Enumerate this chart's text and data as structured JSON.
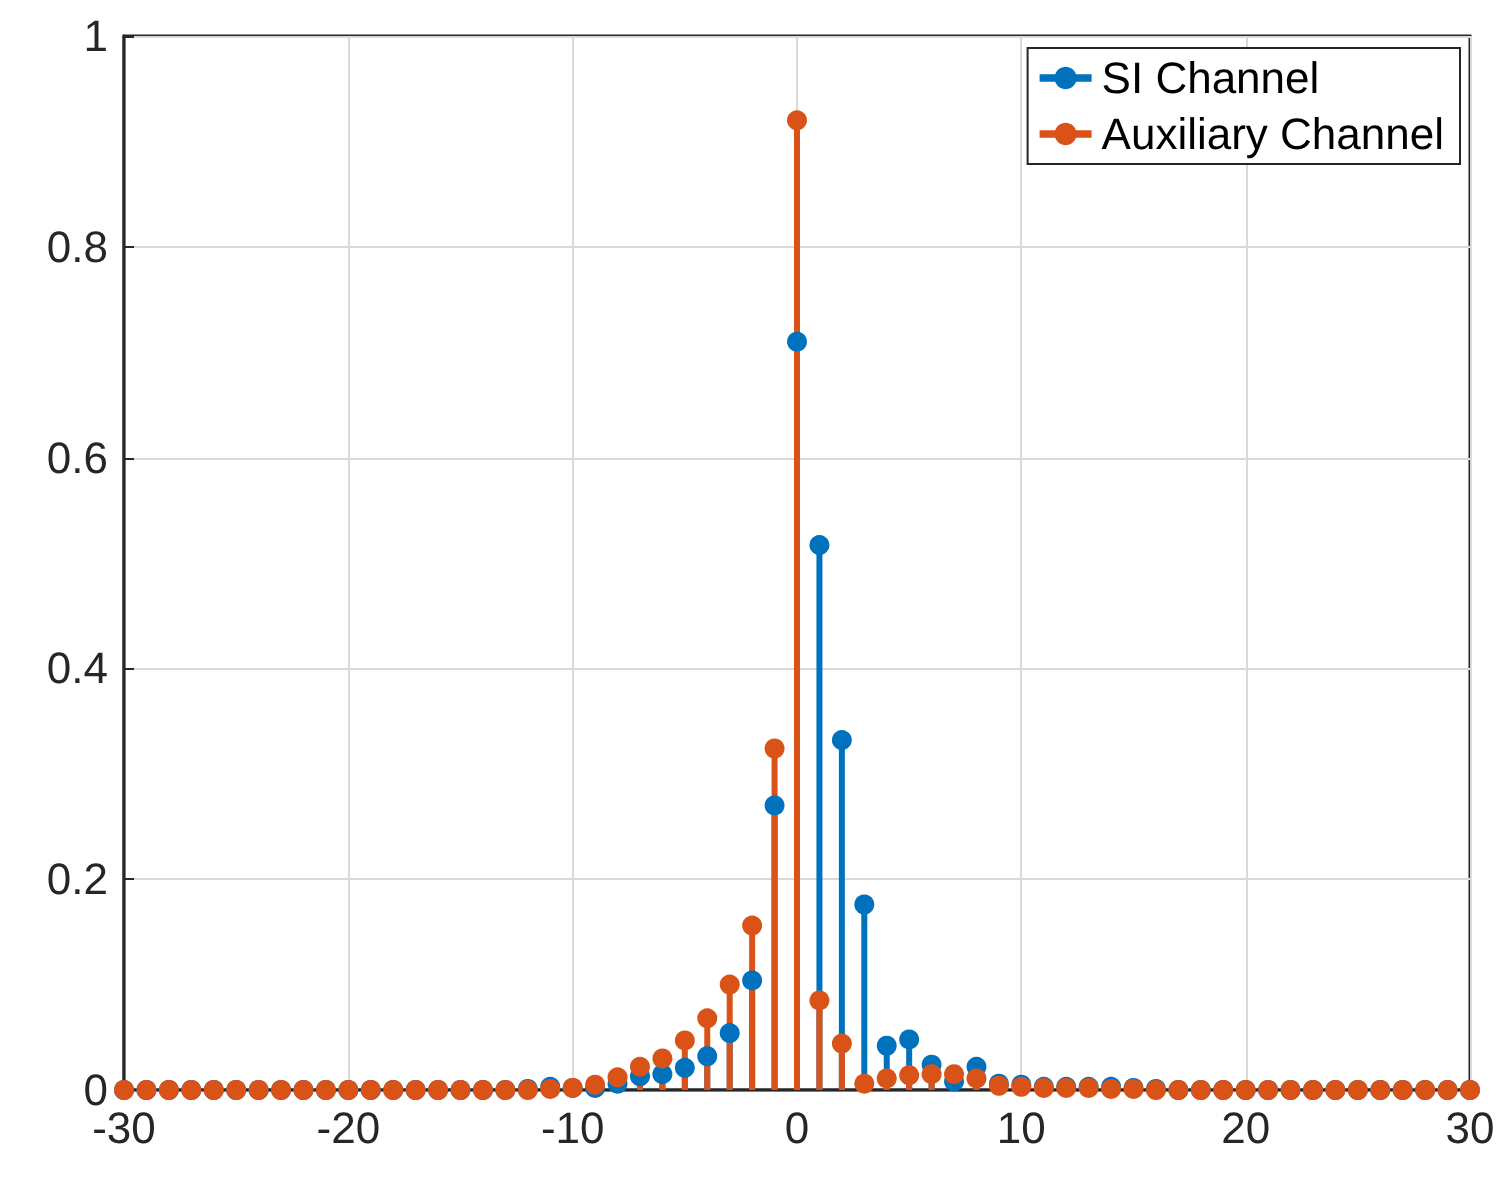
{
  "chart_data": {
    "type": "lollipop",
    "x": [
      -30,
      -29,
      -28,
      -27,
      -26,
      -25,
      -24,
      -23,
      -22,
      -21,
      -20,
      -19,
      -18,
      -17,
      -16,
      -15,
      -14,
      -13,
      -12,
      -11,
      -10,
      -9,
      -8,
      -7,
      -6,
      -5,
      -4,
      -3,
      -2,
      -1,
      0,
      1,
      2,
      3,
      4,
      5,
      6,
      7,
      8,
      9,
      10,
      11,
      12,
      13,
      14,
      15,
      16,
      17,
      18,
      19,
      20,
      21,
      22,
      23,
      24,
      25,
      26,
      27,
      28,
      29,
      30
    ],
    "series": [
      {
        "name": "SI Channel",
        "color": "#0072bd",
        "values": [
          0,
          0,
          0,
          0,
          0,
          0,
          0,
          0,
          0,
          0,
          0,
          0,
          0,
          0,
          0,
          0,
          0,
          0,
          0.001,
          0.003,
          0.002,
          0.002,
          0.006,
          0.013,
          0.015,
          0.021,
          0.032,
          0.054,
          0.104,
          0.27,
          0.71,
          0.517,
          0.332,
          0.176,
          0.042,
          0.048,
          0.024,
          0.008,
          0.022,
          0.006,
          0.005,
          0.003,
          0.003,
          0.003,
          0.003,
          0.002,
          0.001,
          0,
          0,
          0,
          0,
          0,
          0,
          0,
          0,
          0,
          0,
          0,
          0,
          0,
          0
        ]
      },
      {
        "name": "Auxiliary Channel",
        "color": "#d95319",
        "values": [
          0,
          0,
          0,
          0,
          0,
          0,
          0,
          0,
          0,
          0,
          0,
          0,
          0,
          0,
          0,
          0,
          0,
          0,
          0,
          0.001,
          0.002,
          0.005,
          0.012,
          0.022,
          0.03,
          0.047,
          0.068,
          0.1,
          0.156,
          0.324,
          0.92,
          0.085,
          0.044,
          0.006,
          0.011,
          0.014,
          0.015,
          0.015,
          0.011,
          0.004,
          0.003,
          0.002,
          0.002,
          0.002,
          0.001,
          0.001,
          0,
          0,
          0,
          0,
          0,
          0,
          0,
          0,
          0,
          0,
          0,
          0,
          0,
          0,
          0
        ]
      }
    ],
    "xlim": [
      -30,
      30
    ],
    "xticks": [
      -30,
      -20,
      -10,
      0,
      10,
      20,
      30
    ],
    "ylim": [
      0,
      1
    ],
    "yticks": [
      0,
      0.2,
      0.4,
      0.6,
      0.8,
      1
    ],
    "grid": true,
    "legend": "top right",
    "marker": "circle"
  }
}
